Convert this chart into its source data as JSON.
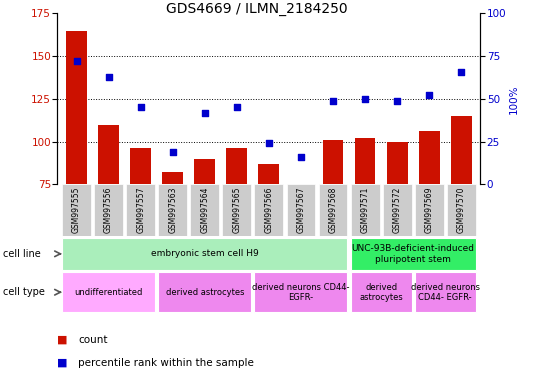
{
  "title": "GDS4669 / ILMN_2184250",
  "samples": [
    "GSM997555",
    "GSM997556",
    "GSM997557",
    "GSM997563",
    "GSM997564",
    "GSM997565",
    "GSM997566",
    "GSM997567",
    "GSM997568",
    "GSM997571",
    "GSM997572",
    "GSM997569",
    "GSM997570"
  ],
  "counts": [
    165,
    110,
    96,
    82,
    90,
    96,
    87,
    75,
    101,
    102,
    100,
    106,
    115
  ],
  "percentile": [
    72,
    63,
    45,
    19,
    42,
    45,
    24,
    16,
    49,
    50,
    49,
    52,
    66
  ],
  "ylim_left": [
    75,
    175
  ],
  "ylim_right": [
    0,
    100
  ],
  "yticks_left": [
    75,
    100,
    125,
    150,
    175
  ],
  "yticks_right": [
    0,
    25,
    50,
    75,
    100
  ],
  "bar_color": "#cc1100",
  "scatter_color": "#0000cc",
  "cell_line_groups": [
    {
      "label": "embryonic stem cell H9",
      "start": 0,
      "end": 8,
      "color": "#aaeebb"
    },
    {
      "label": "UNC-93B-deficient-induced\npluripotent stem",
      "start": 9,
      "end": 12,
      "color": "#33ee66"
    }
  ],
  "cell_type_groups": [
    {
      "label": "undifferentiated",
      "start": 0,
      "end": 2,
      "color": "#ffaaff"
    },
    {
      "label": "derived astrocytes",
      "start": 3,
      "end": 5,
      "color": "#ee88ee"
    },
    {
      "label": "derived neurons CD44-\nEGFR-",
      "start": 6,
      "end": 8,
      "color": "#ee88ee"
    },
    {
      "label": "derived\nastrocytes",
      "start": 9,
      "end": 10,
      "color": "#ee88ee"
    },
    {
      "label": "derived neurons\nCD44- EGFR-",
      "start": 11,
      "end": 12,
      "color": "#ee88ee"
    }
  ],
  "grid_color": "black",
  "background": "white",
  "tick_bg": "#cccccc",
  "arrow_color": "#555555"
}
